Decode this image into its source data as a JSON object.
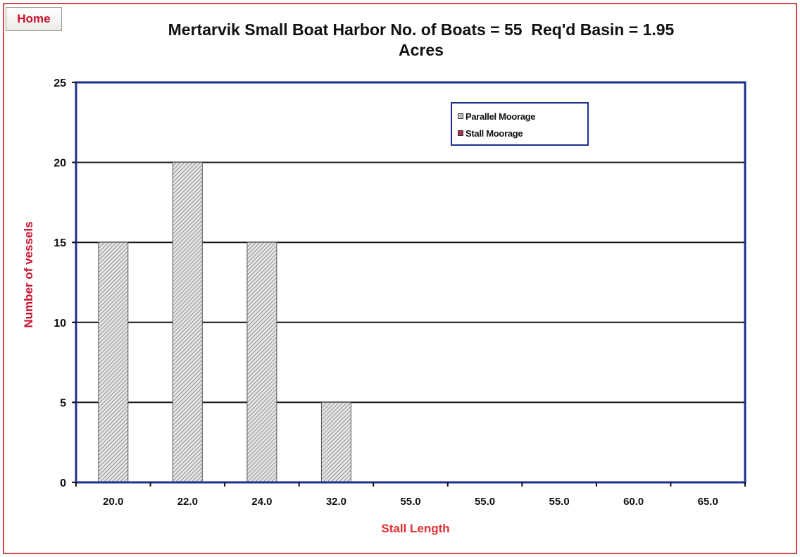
{
  "nav": {
    "home_label": "Home"
  },
  "chart_data": {
    "type": "bar",
    "title": "Mertarvik Small Boat Harbor No. of Boats = 55  Req'd Basin = 1.95\nAcres",
    "xlabel": "Stall Length",
    "ylabel": "Number of vessels",
    "categories": [
      "20.0",
      "22.0",
      "24.0",
      "32.0",
      "55.0",
      "55.0",
      "55.0",
      "60.0",
      "65.0"
    ],
    "series": [
      {
        "name": "Parallel Moorage",
        "values": [
          0,
          0,
          0,
          0,
          0,
          0,
          0,
          0,
          0
        ]
      },
      {
        "name": "Stall Moorage",
        "values": [
          15,
          20,
          15,
          5,
          0,
          0,
          0,
          0,
          0
        ]
      }
    ],
    "ylim": [
      0,
      25
    ],
    "yticks": [
      0,
      5,
      10,
      15,
      20,
      25
    ],
    "grid": true,
    "legend_position": "top-right",
    "colors": {
      "axis_border": "#1c2f8c",
      "gridline": "#111111",
      "bar_hatch": "#7a7a7a",
      "bar_base": "#e6e6e6",
      "accent_red": "#c8102e"
    }
  }
}
